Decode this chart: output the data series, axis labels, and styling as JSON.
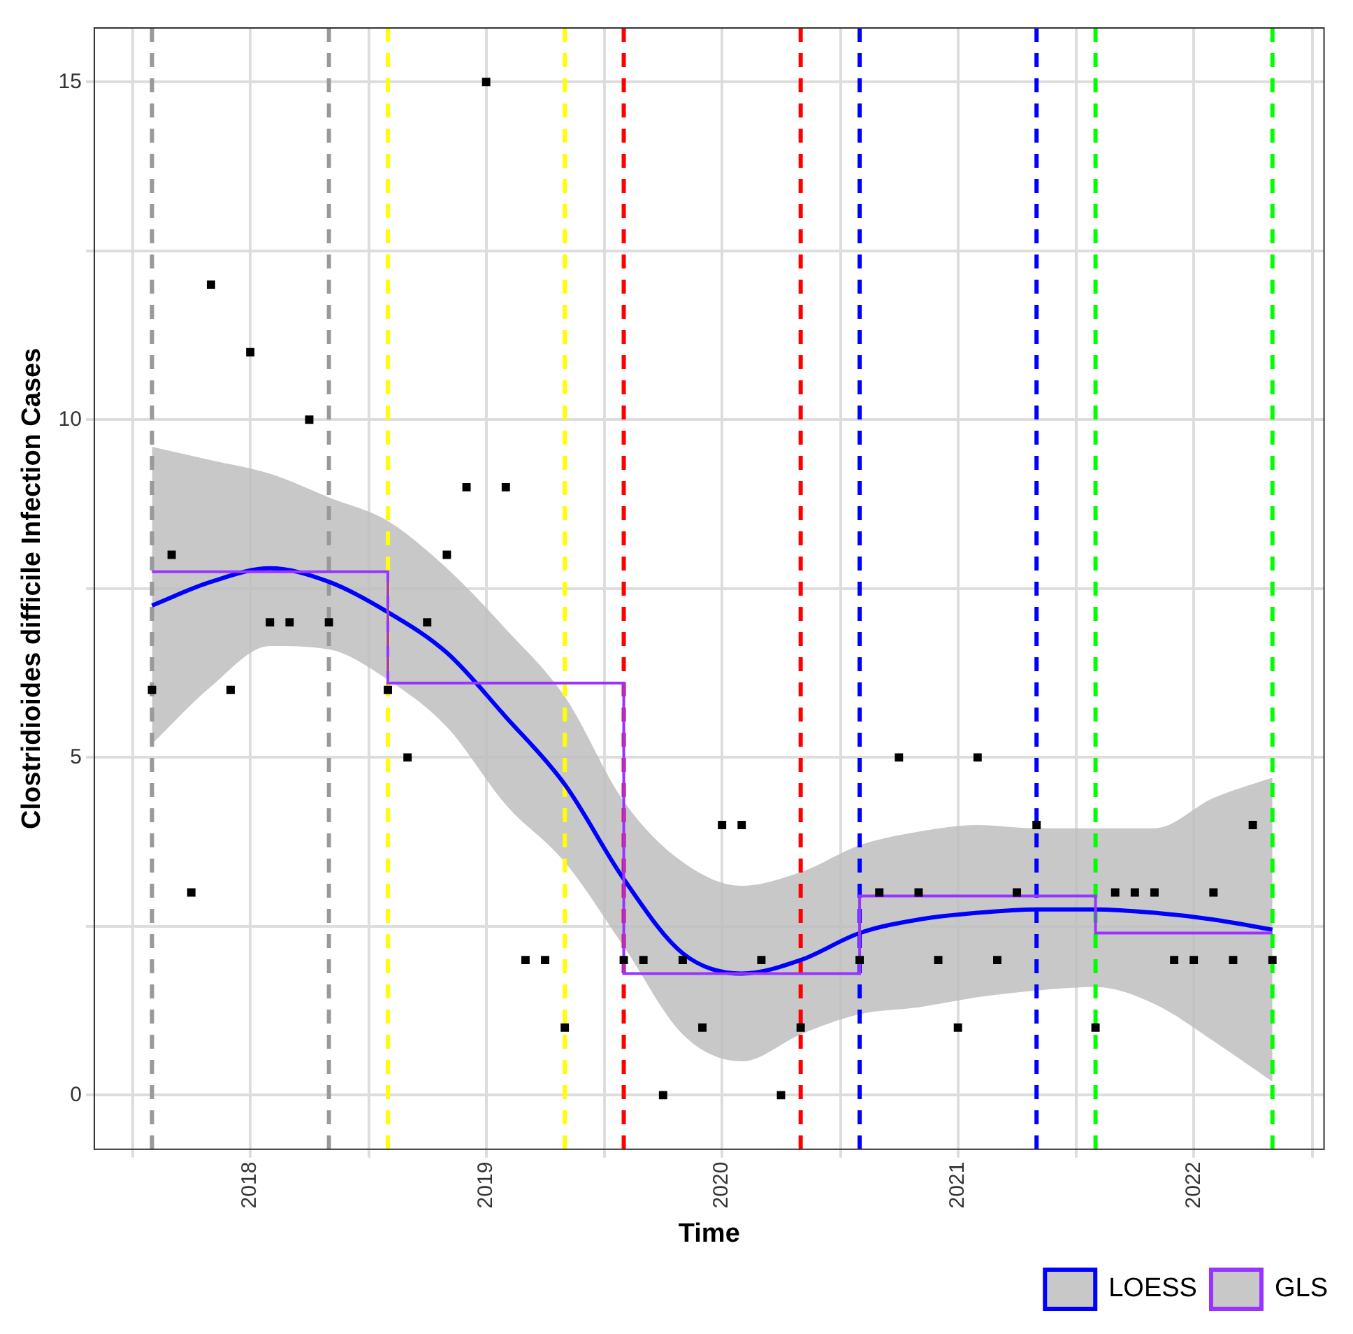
{
  "chart_data": {
    "type": "scatter",
    "xlabel": "Time",
    "ylabel": "Clostridioides difficile Infection Cases",
    "xlim": [
      "2017-05-03",
      "2022-07-20"
    ],
    "xticks": [
      {
        "value": "2017-07-02",
        "label": null
      },
      "2018",
      {
        "value": "2018-07-02",
        "label": null
      },
      "2019",
      {
        "value": "2019-07-02",
        "label": null
      },
      "2020",
      {
        "value": "2020-07-02",
        "label": null
      },
      "2021",
      {
        "value": "2021-07-02",
        "label": null
      },
      "2022",
      {
        "value": "2022-07-02",
        "label": null
      }
    ],
    "ylim": [
      -0.8,
      15.8
    ],
    "yticks": [
      0,
      {
        "value": 2.5,
        "label": null
      },
      5,
      {
        "value": 7.5,
        "label": null
      },
      10,
      {
        "value": 12.5,
        "label": null
      },
      15
    ],
    "grid": true,
    "legend": "bottom right",
    "series": [
      {
        "color": "#000000",
        "marker": "square",
        "x": [
          "2017-08",
          "2017-09",
          "2017-10",
          "2017-11",
          "2017-12",
          "2018-01",
          "2018-02",
          "2018-03",
          "2018-04",
          "2018-05",
          "2018-08",
          "2018-09",
          "2018-10",
          "2018-11",
          "2018-12",
          "2019-01",
          "2019-02",
          "2019-03",
          "2019-04",
          "2019-05",
          "2019-08",
          "2019-09",
          "2019-10",
          "2019-11",
          "2019-12",
          "2020-01",
          "2020-02",
          "2020-03",
          "2020-04",
          "2020-05",
          "2020-08",
          "2020-09",
          "2020-10",
          "2020-11",
          "2020-12",
          "2021-01",
          "2021-02",
          "2021-03",
          "2021-04",
          "2021-05",
          "2021-08",
          "2021-09",
          "2021-10",
          "2021-11",
          "2021-12",
          "2022-01",
          "2022-02",
          "2022-03",
          "2022-04",
          "2022-05"
        ],
        "values": [
          6,
          8,
          3,
          12,
          6,
          11,
          7,
          7,
          10,
          7,
          6,
          5,
          7,
          8,
          9,
          15,
          9,
          2,
          2,
          1,
          2,
          2,
          0,
          2,
          1,
          4,
          4,
          2,
          0,
          1,
          2,
          3,
          5,
          3,
          2,
          1,
          5,
          2,
          3,
          4,
          1,
          3,
          3,
          3,
          2,
          2,
          3,
          2,
          4,
          2
        ]
      },
      {
        "name": "LOESS",
        "type": "line",
        "color": "#0000ff",
        "x": [
          "2017-08",
          "2017-11",
          "2018-02",
          "2018-05",
          "2018-08",
          "2018-11",
          "2019-02",
          "2019-05",
          "2019-08",
          "2019-11",
          "2020-02",
          "2020-05",
          "2020-08",
          "2020-11",
          "2021-02",
          "2021-05",
          "2021-08",
          "2021-11",
          "2022-02",
          "2022-05"
        ],
        "values": [
          7.25,
          7.6,
          7.8,
          7.6,
          7.15,
          6.55,
          5.6,
          4.6,
          3.2,
          2.1,
          1.8,
          2.0,
          2.4,
          2.6,
          2.7,
          2.75,
          2.75,
          2.7,
          2.6,
          2.45
        ],
        "lower": [
          5.2,
          6.05,
          6.65,
          6.6,
          6.15,
          5.45,
          4.3,
          3.45,
          2.2,
          0.9,
          0.5,
          0.9,
          1.2,
          1.3,
          1.45,
          1.55,
          1.6,
          1.35,
          0.8,
          0.2
        ],
        "upper": [
          9.6,
          9.4,
          9.2,
          8.85,
          8.5,
          7.8,
          6.9,
          5.9,
          4.35,
          3.45,
          3.1,
          3.3,
          3.7,
          3.9,
          4.0,
          3.95,
          3.95,
          3.95,
          4.4,
          4.7
        ]
      },
      {
        "name": "GLS",
        "type": "step",
        "color": "#9933ff",
        "x": [
          "2017-08",
          "2018-08",
          "2019-08",
          "2020-08",
          "2021-08",
          "2022-05"
        ],
        "values": [
          7.75,
          6.1,
          1.8,
          2.95,
          2.4,
          2.4
        ]
      }
    ],
    "ref_lines": [
      {
        "axis": "x",
        "value": "2017-08",
        "color": "#999999",
        "line_style": "dashed"
      },
      {
        "axis": "x",
        "value": "2018-05",
        "color": "#999999",
        "line_style": "dashed"
      },
      {
        "axis": "x",
        "value": "2018-08",
        "color": "#ffff00",
        "line_style": "dashed"
      },
      {
        "axis": "x",
        "value": "2019-05",
        "color": "#ffff00",
        "line_style": "dashed"
      },
      {
        "axis": "x",
        "value": "2019-08",
        "color": "#ff0000",
        "line_style": "dashed"
      },
      {
        "axis": "x",
        "value": "2020-05",
        "color": "#ff0000",
        "line_style": "dashed"
      },
      {
        "axis": "x",
        "value": "2020-08",
        "color": "#0000ff",
        "line_style": "dashed"
      },
      {
        "axis": "x",
        "value": "2021-05",
        "color": "#0000ff",
        "line_style": "dashed"
      },
      {
        "axis": "x",
        "value": "2021-08",
        "color": "#00ff00",
        "line_style": "dashed"
      },
      {
        "axis": "x",
        "value": "2022-05",
        "color": "#00ff00",
        "line_style": "dashed"
      }
    ]
  }
}
